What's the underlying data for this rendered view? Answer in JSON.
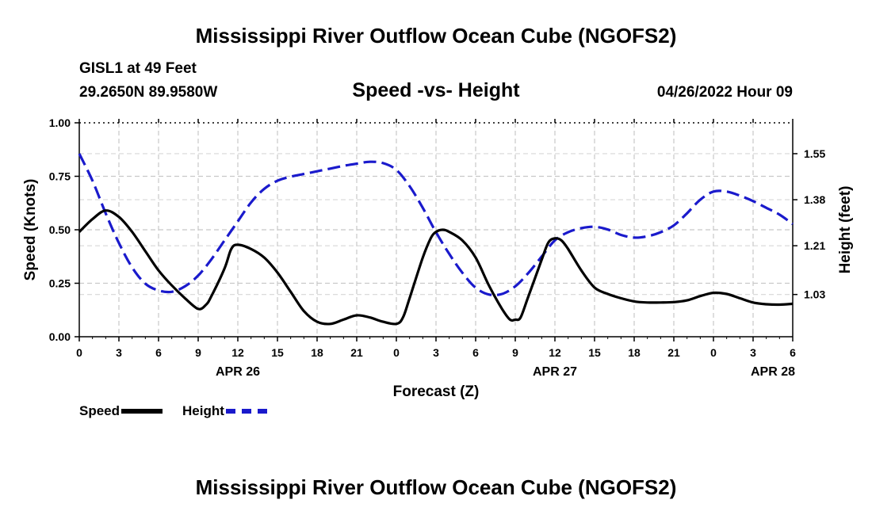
{
  "header": {
    "title": "Mississippi River Outflow Ocean Cube (NGOFS2)",
    "station": "GISL1 at 49 Feet",
    "coords": "29.2650N  89.9580W",
    "subtitle": "Speed -vs- Height",
    "datetime": "04/26/2022 Hour 09"
  },
  "footer": {
    "title": "Mississippi River Outflow Ocean Cube (NGOFS2)"
  },
  "legend": [
    {
      "label": "Speed",
      "color": "#000000",
      "style": "solid"
    },
    {
      "label": "Height",
      "color": "#1a1acc",
      "style": "dashed"
    }
  ],
  "chart_data": {
    "type": "line",
    "title": "Speed -vs- Height",
    "xlabel": "Forecast (Z)",
    "x_range": [
      0,
      54
    ],
    "x_ticks": [
      {
        "v": 0,
        "label": "0"
      },
      {
        "v": 3,
        "label": "3"
      },
      {
        "v": 6,
        "label": "6"
      },
      {
        "v": 9,
        "label": "9"
      },
      {
        "v": 12,
        "label": "12"
      },
      {
        "v": 15,
        "label": "15"
      },
      {
        "v": 18,
        "label": "18"
      },
      {
        "v": 21,
        "label": "21"
      },
      {
        "v": 24,
        "label": "0"
      },
      {
        "v": 27,
        "label": "3"
      },
      {
        "v": 30,
        "label": "6"
      },
      {
        "v": 33,
        "label": "9"
      },
      {
        "v": 36,
        "label": "12"
      },
      {
        "v": 39,
        "label": "15"
      },
      {
        "v": 42,
        "label": "18"
      },
      {
        "v": 45,
        "label": "21"
      },
      {
        "v": 48,
        "label": "0"
      },
      {
        "v": 51,
        "label": "3"
      },
      {
        "v": 54,
        "label": "6"
      }
    ],
    "date_labels": [
      {
        "v": 12,
        "label": "APR 26"
      },
      {
        "v": 36,
        "label": "APR 27"
      },
      {
        "v": 52.5,
        "label": "APR 28"
      }
    ],
    "y_left": {
      "label": "Speed (Knots)",
      "range": [
        0,
        1
      ],
      "ticks": [
        {
          "v": 0,
          "label": "0.00"
        },
        {
          "v": 0.25,
          "label": "0.25"
        },
        {
          "v": 0.5,
          "label": "0.50"
        },
        {
          "v": 0.75,
          "label": "0.75"
        },
        {
          "v": 1.0,
          "label": "1.00"
        }
      ]
    },
    "y_right": {
      "label": "Height (feet)",
      "range": [
        0.874,
        1.664
      ],
      "ticks": [
        {
          "v": 1.03,
          "label": "1.03"
        },
        {
          "v": 1.21,
          "label": "1.21"
        },
        {
          "v": 1.38,
          "label": "1.38"
        },
        {
          "v": 1.55,
          "label": "1.55"
        }
      ]
    },
    "series": [
      {
        "name": "Speed",
        "axis": "left",
        "color": "#000000",
        "dash": false,
        "points": [
          [
            0,
            0.49
          ],
          [
            1,
            0.55
          ],
          [
            2,
            0.59
          ],
          [
            3,
            0.56
          ],
          [
            4,
            0.49
          ],
          [
            5,
            0.4
          ],
          [
            6,
            0.31
          ],
          [
            7,
            0.24
          ],
          [
            8,
            0.18
          ],
          [
            9,
            0.13
          ],
          [
            9.6,
            0.15
          ],
          [
            10,
            0.19
          ],
          [
            11,
            0.32
          ],
          [
            11.5,
            0.41
          ],
          [
            12,
            0.43
          ],
          [
            13,
            0.41
          ],
          [
            14,
            0.37
          ],
          [
            15,
            0.3
          ],
          [
            16,
            0.21
          ],
          [
            17,
            0.12
          ],
          [
            18,
            0.07
          ],
          [
            19,
            0.06
          ],
          [
            20,
            0.08
          ],
          [
            21,
            0.1
          ],
          [
            22,
            0.09
          ],
          [
            23,
            0.07
          ],
          [
            24,
            0.06
          ],
          [
            24.5,
            0.09
          ],
          [
            25,
            0.18
          ],
          [
            26,
            0.37
          ],
          [
            26.6,
            0.46
          ],
          [
            27,
            0.49
          ],
          [
            27.5,
            0.5
          ],
          [
            28,
            0.49
          ],
          [
            29,
            0.45
          ],
          [
            30,
            0.37
          ],
          [
            31,
            0.24
          ],
          [
            32,
            0.13
          ],
          [
            32.6,
            0.08
          ],
          [
            33,
            0.08
          ],
          [
            33.4,
            0.09
          ],
          [
            34,
            0.19
          ],
          [
            35,
            0.36
          ],
          [
            35.5,
            0.44
          ],
          [
            36,
            0.46
          ],
          [
            36.5,
            0.45
          ],
          [
            37,
            0.41
          ],
          [
            38,
            0.31
          ],
          [
            39,
            0.23
          ],
          [
            40,
            0.2
          ],
          [
            41,
            0.18
          ],
          [
            42,
            0.165
          ],
          [
            43,
            0.16
          ],
          [
            44,
            0.16
          ],
          [
            45,
            0.162
          ],
          [
            46,
            0.17
          ],
          [
            47,
            0.19
          ],
          [
            48,
            0.205
          ],
          [
            49,
            0.2
          ],
          [
            50,
            0.18
          ],
          [
            51,
            0.16
          ],
          [
            52,
            0.152
          ],
          [
            53,
            0.15
          ],
          [
            54,
            0.154
          ]
        ]
      },
      {
        "name": "Height",
        "axis": "right",
        "color": "#1a1acc",
        "dash": true,
        "points": [
          [
            0,
            1.55
          ],
          [
            1,
            1.45
          ],
          [
            2,
            1.33
          ],
          [
            3,
            1.22
          ],
          [
            4,
            1.13
          ],
          [
            5,
            1.07
          ],
          [
            6,
            1.045
          ],
          [
            7,
            1.04
          ],
          [
            8,
            1.06
          ],
          [
            9,
            1.1
          ],
          [
            10,
            1.16
          ],
          [
            11,
            1.23
          ],
          [
            12,
            1.3
          ],
          [
            13,
            1.37
          ],
          [
            14,
            1.42
          ],
          [
            15,
            1.45
          ],
          [
            16,
            1.465
          ],
          [
            17,
            1.475
          ],
          [
            18,
            1.485
          ],
          [
            19,
            1.495
          ],
          [
            20,
            1.505
          ],
          [
            21,
            1.513
          ],
          [
            22,
            1.52
          ],
          [
            23,
            1.515
          ],
          [
            24,
            1.49
          ],
          [
            25,
            1.43
          ],
          [
            26,
            1.35
          ],
          [
            27,
            1.26
          ],
          [
            28,
            1.18
          ],
          [
            29,
            1.11
          ],
          [
            30,
            1.055
          ],
          [
            31,
            1.03
          ],
          [
            32,
            1.032
          ],
          [
            33,
            1.06
          ],
          [
            34,
            1.11
          ],
          [
            35,
            1.17
          ],
          [
            36,
            1.23
          ],
          [
            37,
            1.26
          ],
          [
            38,
            1.275
          ],
          [
            39,
            1.28
          ],
          [
            40,
            1.27
          ],
          [
            41,
            1.25
          ],
          [
            42,
            1.24
          ],
          [
            43,
            1.245
          ],
          [
            44,
            1.26
          ],
          [
            45,
            1.285
          ],
          [
            46,
            1.33
          ],
          [
            47,
            1.38
          ],
          [
            48,
            1.41
          ],
          [
            49,
            1.41
          ],
          [
            50,
            1.395
          ],
          [
            51,
            1.375
          ],
          [
            52,
            1.35
          ],
          [
            53,
            1.325
          ],
          [
            54,
            1.29
          ]
        ]
      }
    ]
  }
}
